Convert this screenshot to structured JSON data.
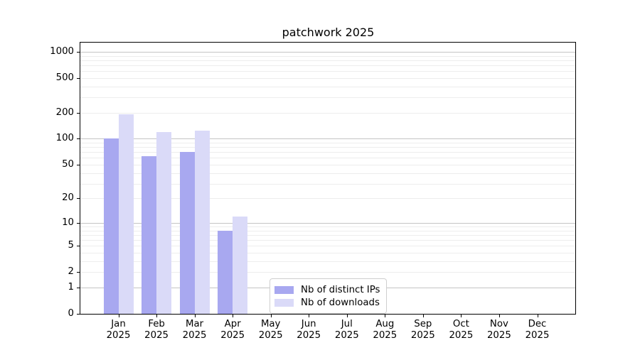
{
  "chart_data": {
    "type": "bar",
    "title": "patchwork 2025",
    "categories": [
      "Jan",
      "Feb",
      "Mar",
      "Apr",
      "May",
      "Jun",
      "Jul",
      "Aug",
      "Sep",
      "Oct",
      "Nov",
      "Dec"
    ],
    "x_tick_second_line": "2025",
    "series": [
      {
        "name": "Nb of distinct IPs",
        "color": "#a8a8f0",
        "values": [
          100,
          63,
          71,
          8,
          0,
          0,
          0,
          0,
          0,
          0,
          0,
          0
        ]
      },
      {
        "name": "Nb of downloads",
        "color": "#dadaf8",
        "values": [
          193,
          120,
          124,
          12,
          0,
          0,
          0,
          0,
          0,
          0,
          0,
          0
        ]
      }
    ],
    "xlabel": "",
    "ylabel": "",
    "yscale": "log1p",
    "y_ticks": [
      0,
      1,
      2,
      5,
      10,
      20,
      50,
      100,
      200,
      500,
      1000
    ],
    "y_major_gridlines": [
      1,
      10,
      100,
      1000
    ],
    "ylim": [
      0,
      1273
    ],
    "grid": true,
    "legend_position": "lower center-left inside plot",
    "colors": {
      "major_gridline": "#c4c4c4",
      "minor_gridline": "#ededed",
      "axis": "#000000",
      "background": "#ffffff"
    }
  }
}
